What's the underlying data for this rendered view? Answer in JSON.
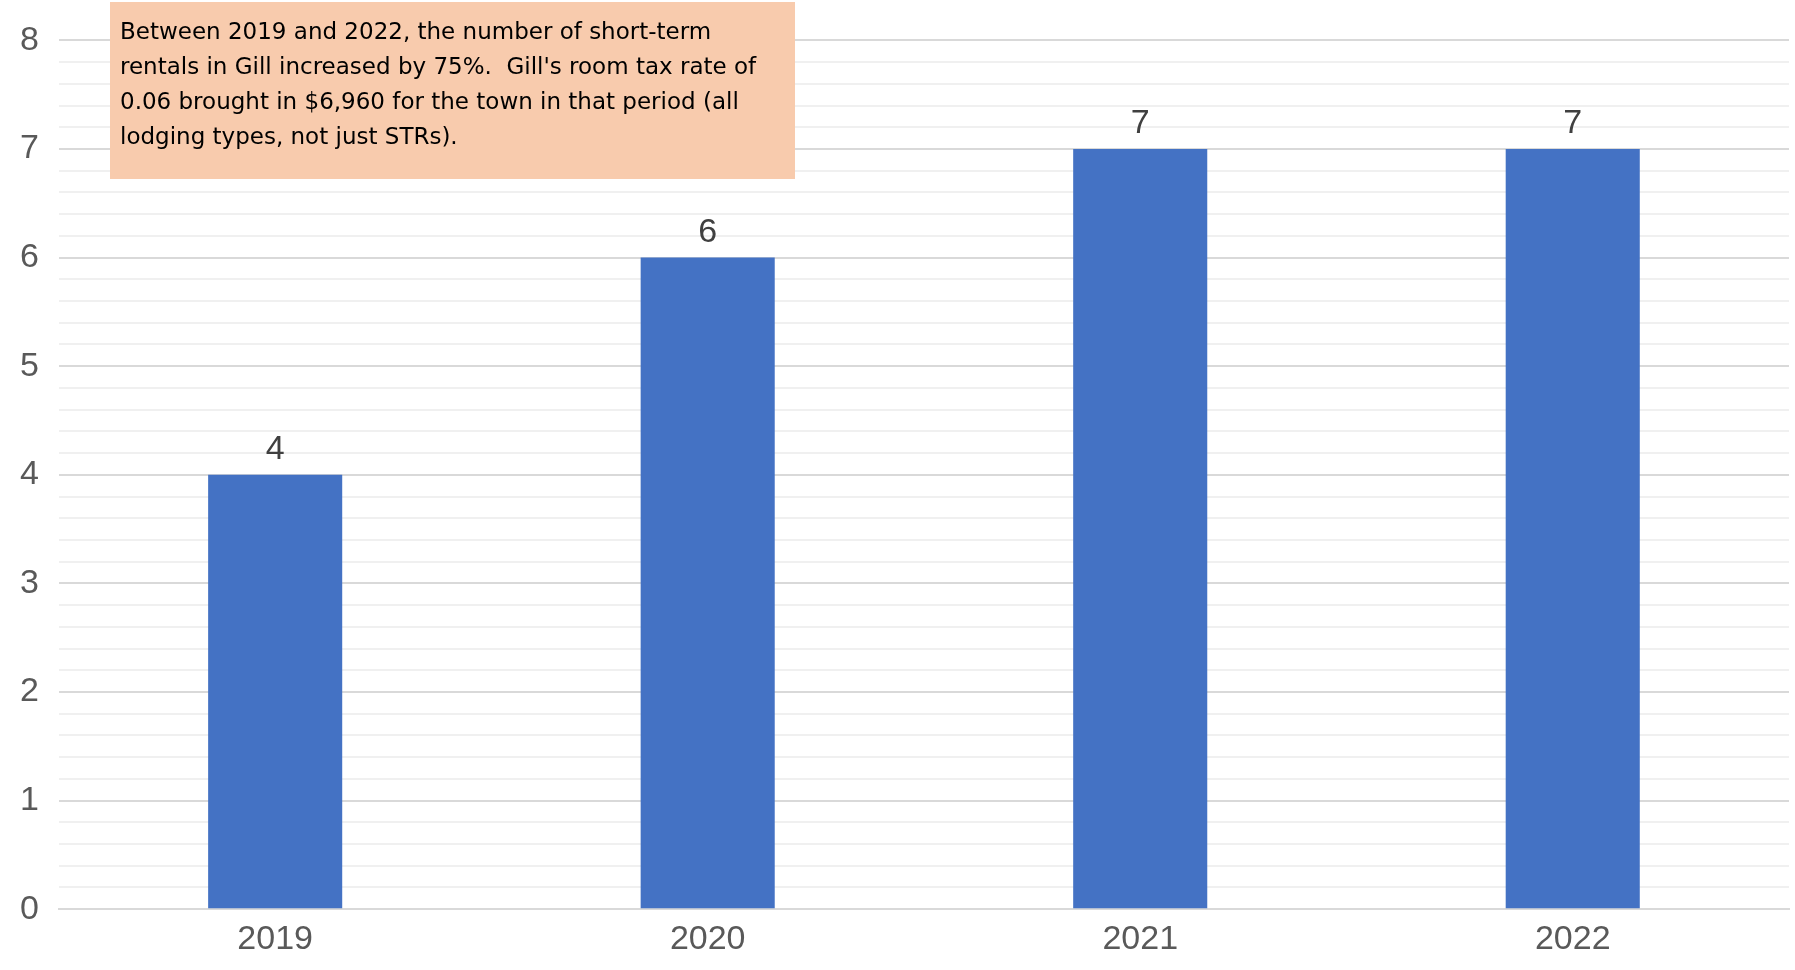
{
  "chart_data": {
    "type": "bar",
    "categories": [
      "2019",
      "2020",
      "2021",
      "2022"
    ],
    "values": [
      4,
      6,
      7,
      7
    ],
    "color": "#4472c4",
    "data_labels": true,
    "grid": "y",
    "legend": false,
    "ylim": [
      0,
      8
    ],
    "yticks": [
      0,
      {
        "value": 0.2,
        "label": null
      },
      {
        "value": 0.4,
        "label": null
      },
      {
        "value": 0.6,
        "label": null
      },
      {
        "value": 0.8,
        "label": null
      },
      1,
      {
        "value": 1.2,
        "label": null
      },
      {
        "value": 1.4,
        "label": null
      },
      {
        "value": 1.6,
        "label": null
      },
      {
        "value": 1.8,
        "label": null
      },
      2,
      {
        "value": 2.2,
        "label": null
      },
      {
        "value": 2.4,
        "label": null
      },
      {
        "value": 2.6,
        "label": null
      },
      {
        "value": 2.8,
        "label": null
      },
      3,
      {
        "value": 3.2,
        "label": null
      },
      {
        "value": 3.4,
        "label": null
      },
      {
        "value": 3.6,
        "label": null
      },
      {
        "value": 3.8,
        "label": null
      },
      4,
      {
        "value": 4.2,
        "label": null
      },
      {
        "value": 4.4,
        "label": null
      },
      {
        "value": 4.6,
        "label": null
      },
      {
        "value": 4.8,
        "label": null
      },
      5,
      {
        "value": 5.2,
        "label": null
      },
      {
        "value": 5.4,
        "label": null
      },
      {
        "value": 5.6,
        "label": null
      },
      {
        "value": 5.8,
        "label": null
      },
      6,
      {
        "value": 6.2,
        "label": null
      },
      {
        "value": 6.4,
        "label": null
      },
      {
        "value": 6.6,
        "label": null
      },
      {
        "value": 6.8,
        "label": null
      },
      7,
      {
        "value": 7.2,
        "label": null
      },
      {
        "value": 7.4,
        "label": null
      },
      {
        "value": 7.6,
        "label": null
      },
      {
        "value": 7.8,
        "label": null
      },
      8
    ],
    "annotations": [
      "Between 2019 and 2022, the number of short-term rentals in Gill increased by 75%.  Gill's room tax rate of 0.06 brought in $6,960 for the town in that period (all lodging types, not just STRs)."
    ]
  }
}
